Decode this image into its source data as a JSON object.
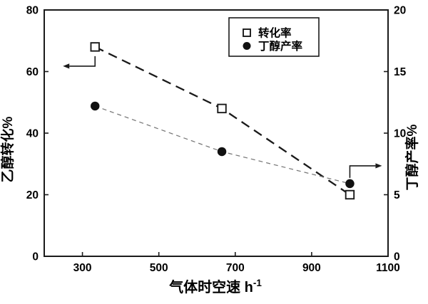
{
  "figure": {
    "background": "#ffffff",
    "frame_color": "#1a1a1a",
    "text_color": "#000000"
  },
  "chart_data": {
    "type": "line",
    "title": "",
    "xlabel": {
      "text": "气体时空速 h",
      "sup": "-1"
    },
    "ylabel_left": "乙醇转化%",
    "ylabel_right": "丁醇产率%",
    "xlim": [
      200,
      1100
    ],
    "xticks": [
      300,
      500,
      700,
      900,
      1100
    ],
    "ylim_left": [
      0,
      80
    ],
    "yticks_left": [
      0,
      20,
      40,
      60,
      80
    ],
    "ylim_right": [
      0,
      20
    ],
    "yticks_right": [
      0,
      5,
      10,
      15,
      20
    ],
    "grid": false,
    "legend": {
      "position": "top-center",
      "border_color": "#1a1a1a",
      "entries": [
        "转化率",
        "丁醇产率"
      ]
    },
    "series": [
      {
        "name": "转化率",
        "axis": "left",
        "marker": "open-square",
        "marker_color": "#1a1a1a",
        "line_style": "long-dash",
        "line_color": "#1a1a1a",
        "x": [
          333,
          665,
          1000
        ],
        "values": [
          68,
          48,
          20
        ]
      },
      {
        "name": "丁醇产率",
        "axis": "right",
        "marker": "filled-circle",
        "marker_color": "#111111",
        "line_style": "short-dash",
        "line_color": "#777777",
        "x": [
          333,
          665,
          1000
        ],
        "values": [
          12.2,
          8.5,
          5.9
        ]
      }
    ],
    "annotations": [
      {
        "type": "axis-pointer-arrow",
        "series": "转化率",
        "direction": "left",
        "meaning": "read series on left axis"
      },
      {
        "type": "axis-pointer-arrow",
        "series": "丁醇产率",
        "direction": "right",
        "meaning": "read series on right axis"
      }
    ]
  }
}
